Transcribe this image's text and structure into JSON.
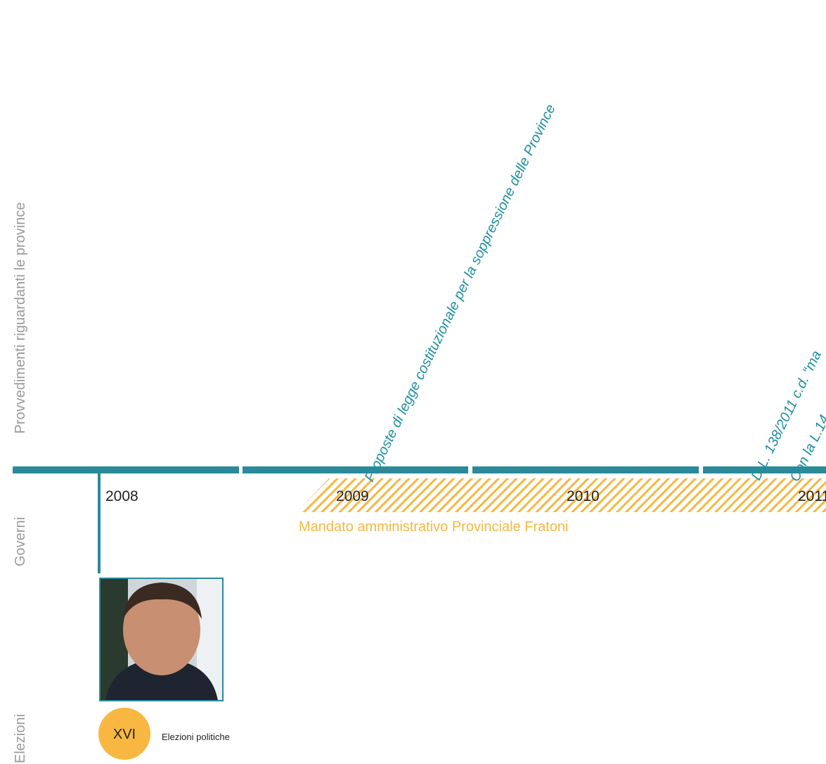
{
  "side_labels": {
    "provvedimenti": "Provvedimenti riguardanti le province",
    "governi": "Governi",
    "elezioni": "Elezioni"
  },
  "years": [
    "2008",
    "2009",
    "2010",
    "2011"
  ],
  "events": [
    "Proposte di legge costituzionale per la soppressione delle Province",
    "D.L. 138/2011 c.d. “ma",
    "Con la L.14"
  ],
  "mandate": "Mandato amministrativo Provinciale Fratoni",
  "election": {
    "badge": "XVI",
    "label": "Elezioni politiche"
  }
}
